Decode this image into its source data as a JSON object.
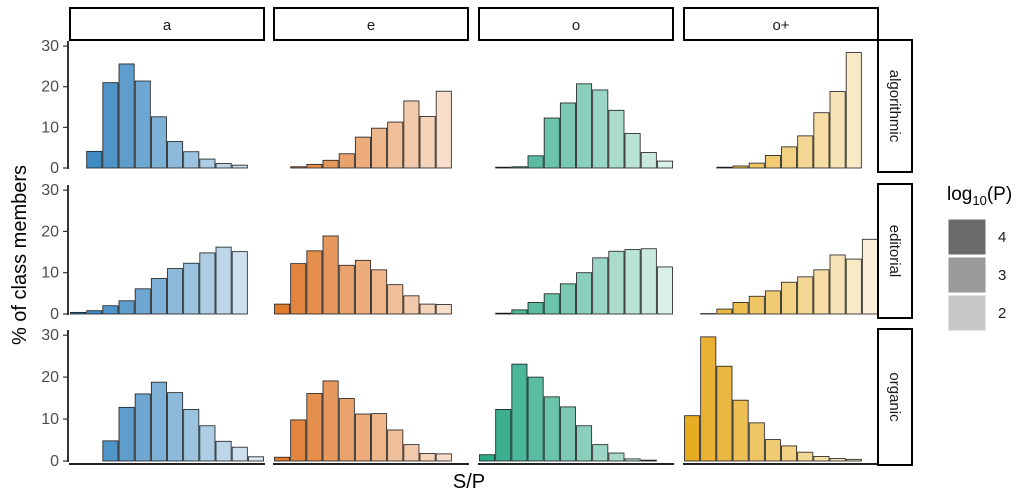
{
  "chart_data": {
    "type": "bar",
    "xlabel": "S/P",
    "ylabel": "% of class members",
    "ylim": [
      0,
      31
    ],
    "yticks": [
      0,
      10,
      20,
      30
    ],
    "columns": [
      "a",
      "e",
      "o",
      "o+"
    ],
    "rows": [
      "algorithmic",
      "editorial",
      "organic"
    ],
    "bins": 12,
    "colors": {
      "a": "#3182bd",
      "e": "#e07b2e",
      "o": "#2ca986",
      "o+": "#e8ac22"
    },
    "legend": {
      "title_main": "log",
      "title_sub": "10",
      "title_tail": "(P)",
      "entries": [
        {
          "label": "4",
          "shade": "#6b6b6b"
        },
        {
          "label": "3",
          "shade": "#9a9a9a"
        },
        {
          "label": "2",
          "shade": "#c8c8c8"
        }
      ]
    },
    "panels": [
      {
        "row": "algorithmic",
        "column": "a",
        "values": [
          0.0,
          4.1,
          21.0,
          25.6,
          21.4,
          12.6,
          6.5,
          4.0,
          2.2,
          1.1,
          0.7,
          0.0
        ]
      },
      {
        "row": "algorithmic",
        "column": "e",
        "values": [
          0.0,
          0.3,
          0.9,
          1.9,
          3.5,
          7.6,
          9.8,
          11.3,
          16.5,
          12.7,
          18.9,
          0.0
        ]
      },
      {
        "row": "algorithmic",
        "column": "o",
        "values": [
          0.0,
          0.2,
          0.3,
          3.0,
          12.3,
          16.0,
          20.7,
          19.2,
          14.2,
          8.5,
          3.8,
          1.7
        ]
      },
      {
        "row": "algorithmic",
        "column": "o+",
        "values": [
          0.0,
          0.0,
          0.2,
          0.5,
          1.2,
          3.1,
          5.2,
          7.9,
          13.6,
          18.8,
          28.4,
          0.0
        ]
      },
      {
        "row": "editorial",
        "column": "a",
        "values": [
          0.4,
          0.8,
          2.0,
          3.2,
          6.1,
          8.6,
          11.0,
          12.3,
          14.8,
          16.2,
          15.1,
          0.0
        ]
      },
      {
        "row": "editorial",
        "column": "e",
        "values": [
          2.4,
          12.2,
          15.3,
          18.9,
          11.8,
          13.0,
          10.7,
          7.1,
          4.4,
          2.4,
          2.3,
          0.0
        ]
      },
      {
        "row": "editorial",
        "column": "o",
        "values": [
          0.0,
          0.2,
          1.0,
          2.8,
          4.9,
          7.3,
          10.0,
          13.6,
          15.2,
          15.6,
          15.8,
          11.4
        ]
      },
      {
        "row": "editorial",
        "column": "o+",
        "values": [
          0.0,
          0.1,
          1.2,
          2.8,
          4.3,
          5.6,
          7.7,
          9.0,
          10.7,
          14.3,
          13.3,
          18.1
        ]
      },
      {
        "row": "organic",
        "column": "a",
        "values": [
          0.0,
          0.0,
          4.8,
          12.8,
          16.0,
          18.8,
          16.3,
          12.3,
          8.4,
          4.7,
          3.3,
          1.0
        ]
      },
      {
        "row": "organic",
        "column": "e",
        "values": [
          0.9,
          9.8,
          16.1,
          19.1,
          14.9,
          11.2,
          11.3,
          7.4,
          3.9,
          1.8,
          1.7,
          0.0
        ]
      },
      {
        "row": "organic",
        "column": "o",
        "values": [
          1.5,
          12.3,
          23.1,
          20.0,
          15.3,
          12.9,
          8.4,
          3.9,
          1.9,
          0.5,
          0.2,
          0.0
        ]
      },
      {
        "row": "organic",
        "column": "o+",
        "values": [
          10.8,
          29.6,
          22.6,
          14.5,
          9.1,
          5.1,
          3.6,
          2.1,
          1.1,
          0.6,
          0.4,
          0.0
        ]
      }
    ]
  }
}
